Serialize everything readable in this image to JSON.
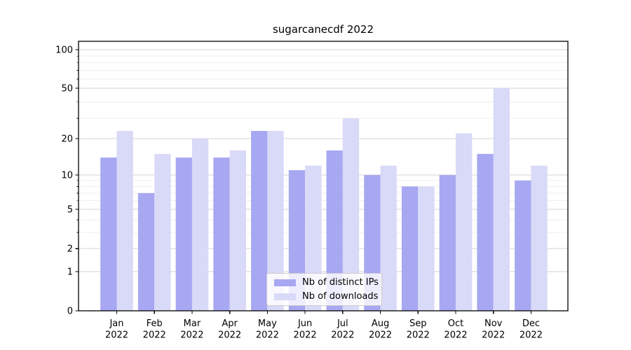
{
  "title": "sugarcanecdf 2022",
  "colors": {
    "ips": "#a7a7f2",
    "downloads": "#d9d9f8",
    "grid_major": "#d3d3d3",
    "grid_minor": "#efefef",
    "axis": "#000000",
    "text": "#000000",
    "legend_border": "#cccccc"
  },
  "legend": {
    "items": [
      {
        "label": "Nb of distinct IPs",
        "series": "ips"
      },
      {
        "label": "Nb of downloads",
        "series": "downloads"
      }
    ]
  },
  "chart_data": {
    "type": "bar",
    "title": "sugarcanecdf 2022",
    "categories": [
      "Jan 2022",
      "Feb 2022",
      "Mar 2022",
      "Apr 2022",
      "May 2022",
      "Jun 2022",
      "Jul 2022",
      "Aug 2022",
      "Sep 2022",
      "Oct 2022",
      "Nov 2022",
      "Dec 2022"
    ],
    "series": [
      {
        "name": "Nb of distinct IPs",
        "values": [
          14,
          7,
          14,
          14,
          23,
          11,
          16,
          10,
          8,
          10,
          15,
          9
        ]
      },
      {
        "name": "Nb of downloads",
        "values": [
          23,
          15,
          20,
          16,
          23,
          12,
          29,
          12,
          8,
          22,
          50,
          12
        ]
      }
    ],
    "xlabel": "",
    "ylabel": "",
    "yscale": "log1p",
    "ylim": [
      0,
      115
    ],
    "yticks": [
      100,
      50,
      20,
      10,
      5,
      2,
      1,
      0
    ],
    "minor_yticks": [
      3,
      4,
      6,
      7,
      8,
      9,
      29,
      39,
      59,
      69,
      79,
      89
    ],
    "grid": "on",
    "legend_position": "lower center"
  }
}
